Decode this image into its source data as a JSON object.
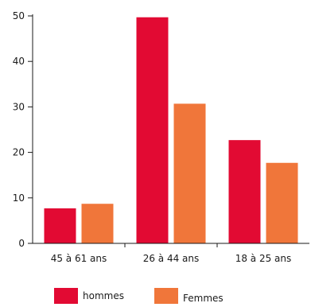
{
  "chart_data": {
    "type": "bar",
    "categories": [
      "45 à 61 ans",
      "26 à 44 ans",
      "18 à 25 ans"
    ],
    "series": [
      {
        "name": "hommes",
        "values": [
          7.7,
          49.7,
          22.7
        ],
        "color": "#e20a33"
      },
      {
        "name": "Femmes",
        "values": [
          8.7,
          30.7,
          17.7
        ],
        "color": "#f0763a"
      }
    ],
    "yticks": [
      0,
      10,
      20,
      30,
      40,
      50
    ],
    "ylim": [
      0,
      50
    ],
    "grid": false,
    "legend_position": "bottom-left"
  }
}
